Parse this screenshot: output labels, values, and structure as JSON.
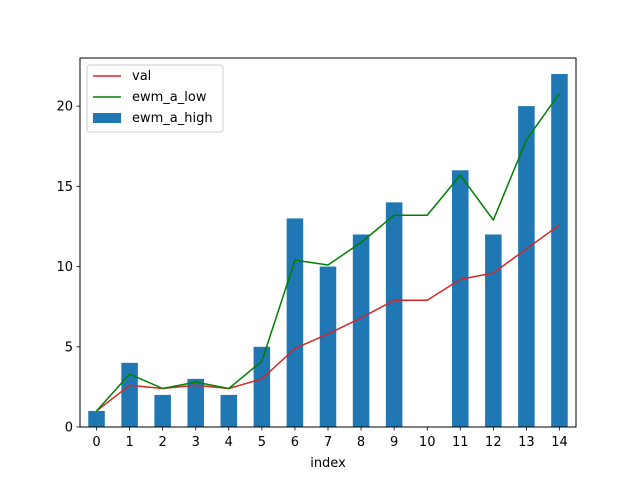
{
  "chart_data": {
    "type": "bar",
    "xlabel": "index",
    "ylabel": "",
    "categories": [
      "0",
      "1",
      "2",
      "3",
      "4",
      "5",
      "6",
      "7",
      "8",
      "9",
      "10",
      "11",
      "12",
      "13",
      "14"
    ],
    "ylim": [
      0,
      23
    ],
    "yticks": [
      0,
      5,
      10,
      15,
      20
    ],
    "grid": false,
    "legend_placement": "upper left",
    "bar_series": {
      "name": "ewm_a_high",
      "color": "#1f77b4",
      "values": [
        1,
        4,
        2,
        3,
        2,
        5,
        13,
        10,
        12,
        14,
        0,
        16,
        12,
        20,
        22
      ]
    },
    "line_series": [
      {
        "name": "val",
        "color": "#d62728",
        "values": [
          1,
          2.6,
          2.4,
          2.6,
          2.4,
          3.0,
          4.9,
          5.8,
          6.8,
          7.9,
          7.9,
          9.2,
          9.6,
          11.1,
          12.6
        ]
      },
      {
        "name": "ewm_a_low",
        "color": "#008000",
        "values": [
          1,
          3.3,
          2.4,
          2.8,
          2.4,
          4.1,
          10.4,
          10.1,
          11.5,
          13.2,
          13.2,
          15.7,
          12.9,
          17.9,
          20.8
        ]
      }
    ],
    "legend": [
      "val",
      "ewm_a_low",
      "ewm_a_high"
    ]
  }
}
